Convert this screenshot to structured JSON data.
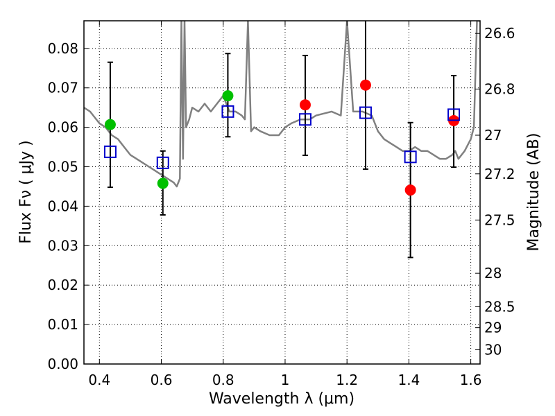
{
  "chart_data": {
    "type": "scatter",
    "xlabel": "Wavelength  λ (μm)",
    "ylabel": "Flux  Fν  ( μJy )",
    "y2label": "Magnitude (AB)",
    "xlim": [
      0.35,
      1.63
    ],
    "ylim": [
      0.0,
      0.087
    ],
    "grid": true,
    "x_ticks": [
      "0.4",
      "0.6",
      "0.8",
      "1",
      "1.2",
      "1.4",
      "1.6"
    ],
    "x_tick_values": [
      0.4,
      0.6,
      0.8,
      1.0,
      1.2,
      1.4,
      1.6
    ],
    "y_ticks": [
      "0.00",
      "0.01",
      "0.02",
      "0.03",
      "0.04",
      "0.05",
      "0.06",
      "0.07",
      "0.08"
    ],
    "y_tick_values": [
      0.0,
      0.01,
      0.02,
      0.03,
      0.04,
      0.05,
      0.06,
      0.07,
      0.08
    ],
    "y2_ticks": [
      {
        "label": "26.6",
        "flux": 0.0838
      },
      {
        "label": "26.8",
        "flux": 0.0697
      },
      {
        "label": "27",
        "flux": 0.058
      },
      {
        "label": "27.2",
        "flux": 0.0482
      },
      {
        "label": "27.5",
        "flux": 0.0365
      },
      {
        "label": "28",
        "flux": 0.023
      },
      {
        "label": "28.5",
        "flux": 0.0145
      },
      {
        "label": "29",
        "flux": 0.0092
      },
      {
        "label": "30",
        "flux": 0.0036
      }
    ],
    "series": [
      {
        "marker": "line",
        "color": "#808080",
        "x": [
          0.35,
          0.37,
          0.38,
          0.4,
          0.42,
          0.44,
          0.46,
          0.48,
          0.5,
          0.52,
          0.54,
          0.56,
          0.58,
          0.6,
          0.62,
          0.64,
          0.65,
          0.66,
          0.665,
          0.67,
          0.675,
          0.68,
          0.69,
          0.7,
          0.72,
          0.74,
          0.76,
          0.78,
          0.79,
          0.8,
          0.81,
          0.82,
          0.84,
          0.86,
          0.87,
          0.88,
          0.89,
          0.9,
          0.92,
          0.95,
          0.98,
          1.0,
          1.02,
          1.05,
          1.08,
          1.1,
          1.15,
          1.18,
          1.2,
          1.22,
          1.25,
          1.28,
          1.3,
          1.32,
          1.34,
          1.36,
          1.38,
          1.4,
          1.42,
          1.44,
          1.46,
          1.48,
          1.5,
          1.52,
          1.54,
          1.55,
          1.56,
          1.58,
          1.6,
          1.61,
          1.62,
          1.63
        ],
        "y": [
          0.065,
          0.064,
          0.063,
          0.061,
          0.06,
          0.058,
          0.057,
          0.055,
          0.053,
          0.052,
          0.051,
          0.05,
          0.049,
          0.048,
          0.047,
          0.046,
          0.045,
          0.047,
          0.087,
          0.052,
          0.087,
          0.06,
          0.062,
          0.065,
          0.064,
          0.066,
          0.064,
          0.066,
          0.067,
          0.068,
          0.066,
          0.064,
          0.064,
          0.063,
          0.062,
          0.087,
          0.059,
          0.06,
          0.059,
          0.058,
          0.058,
          0.06,
          0.061,
          0.062,
          0.062,
          0.063,
          0.064,
          0.063,
          0.087,
          0.064,
          0.064,
          0.063,
          0.059,
          0.057,
          0.056,
          0.055,
          0.054,
          0.054,
          0.055,
          0.054,
          0.054,
          0.053,
          0.052,
          0.052,
          0.053,
          0.054,
          0.052,
          0.054,
          0.057,
          0.06,
          0.087,
          0.087
        ]
      },
      {
        "marker": "green-circle",
        "color": "#00c000",
        "x": [
          0.435,
          0.605,
          0.815
        ],
        "y": [
          0.0607,
          0.0458,
          0.068
        ]
      },
      {
        "marker": "red-circle",
        "color": "#ff0000",
        "x": [
          1.065,
          1.26,
          1.405,
          1.545
        ],
        "y": [
          0.0657,
          0.0707,
          0.0441,
          0.0617
        ]
      },
      {
        "marker": "blue-square",
        "color": "#0000cc",
        "x": [
          0.435,
          0.605,
          0.815,
          1.065,
          1.26,
          1.405,
          1.545
        ],
        "y": [
          0.0538,
          0.051,
          0.064,
          0.062,
          0.0637,
          0.0525,
          0.0632
        ]
      }
    ],
    "error_bars": {
      "color": "#000000",
      "x": [
        0.435,
        0.605,
        0.815,
        1.065,
        1.26,
        1.405,
        1.545
      ],
      "y_low": [
        0.0448,
        0.0378,
        0.0576,
        0.0529,
        0.0494,
        0.027,
        0.0499
      ],
      "y_high": [
        0.0765,
        0.054,
        0.0787,
        0.0782,
        0.087,
        0.0612,
        0.0731
      ]
    }
  }
}
